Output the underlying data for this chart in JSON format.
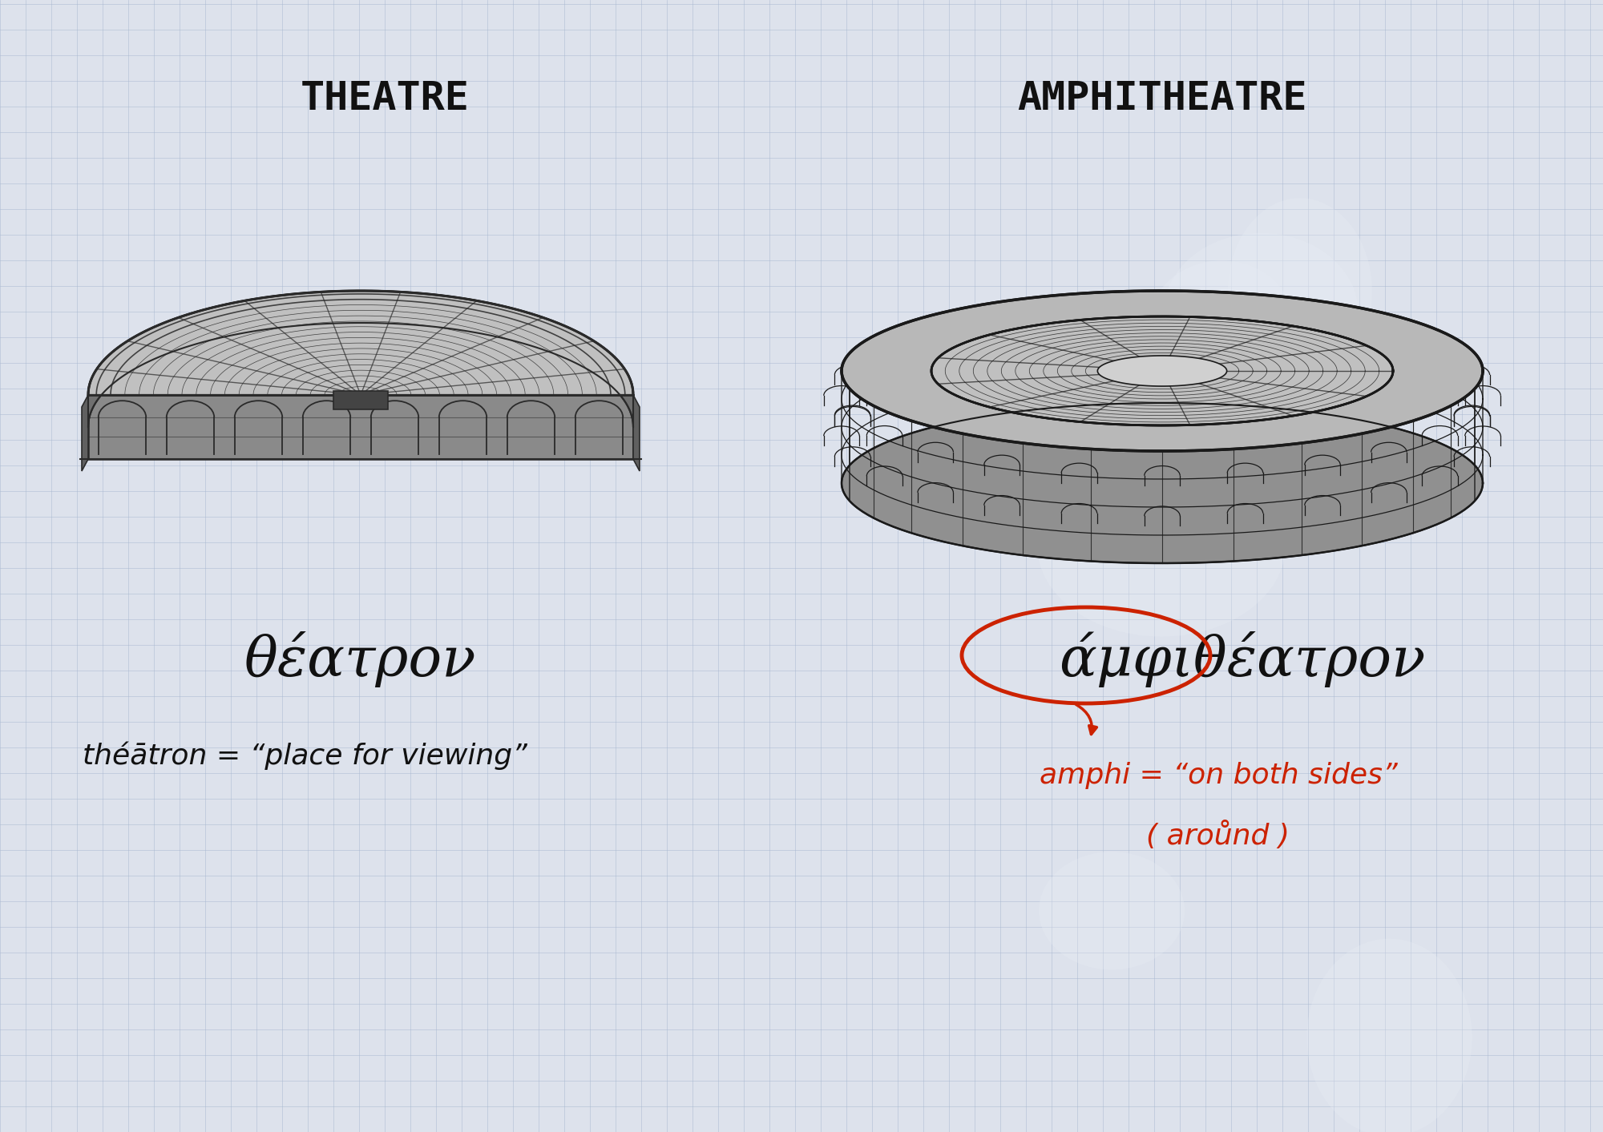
{
  "bg_color": "#dde2ec",
  "grid_color": "#a8b8d0",
  "title_left": "THEATRE",
  "title_right": "AMPHITHEATRE",
  "greek_left": "θέατρον",
  "greek_right": "άμφιθέατρον",
  "note_left": "théātron = “place for viewing”",
  "note_right_line1": "amphi = “on both sides”",
  "note_right_line2": "( aroůnd )",
  "text_color": "#111111",
  "red_color": "#cc2200",
  "title_fontsize": 36,
  "greek_fontsize": 50,
  "note_fontsize": 26
}
